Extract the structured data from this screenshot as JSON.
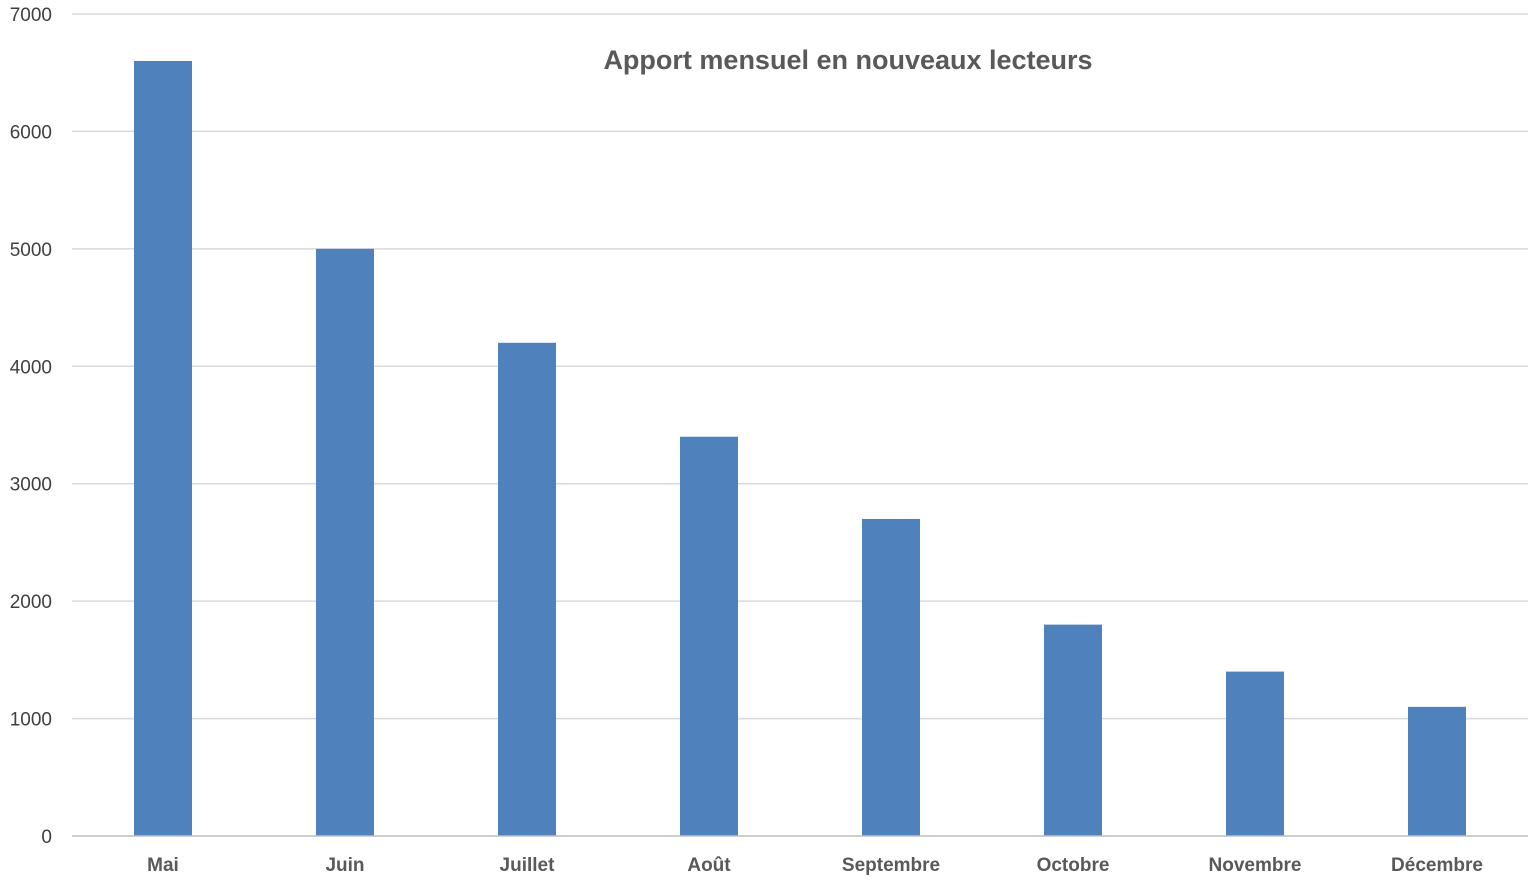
{
  "chart_data": {
    "type": "bar",
    "title": "Apport mensuel en nouveaux lecteurs",
    "xlabel": "",
    "ylabel": "",
    "categories": [
      "Mai",
      "Juin",
      "Juillet",
      "Août",
      "Septembre",
      "Octobre",
      "Novembre",
      "Décembre"
    ],
    "values": [
      6600,
      5000,
      4200,
      3400,
      2700,
      1800,
      1400,
      1100
    ],
    "ylim": [
      0,
      7000
    ],
    "yticks": [
      "0",
      "1000",
      "2000",
      "3000",
      "4000",
      "5000",
      "6000",
      "7000"
    ],
    "grid": true,
    "legend": "none",
    "bar_color": "#4f81bd"
  }
}
